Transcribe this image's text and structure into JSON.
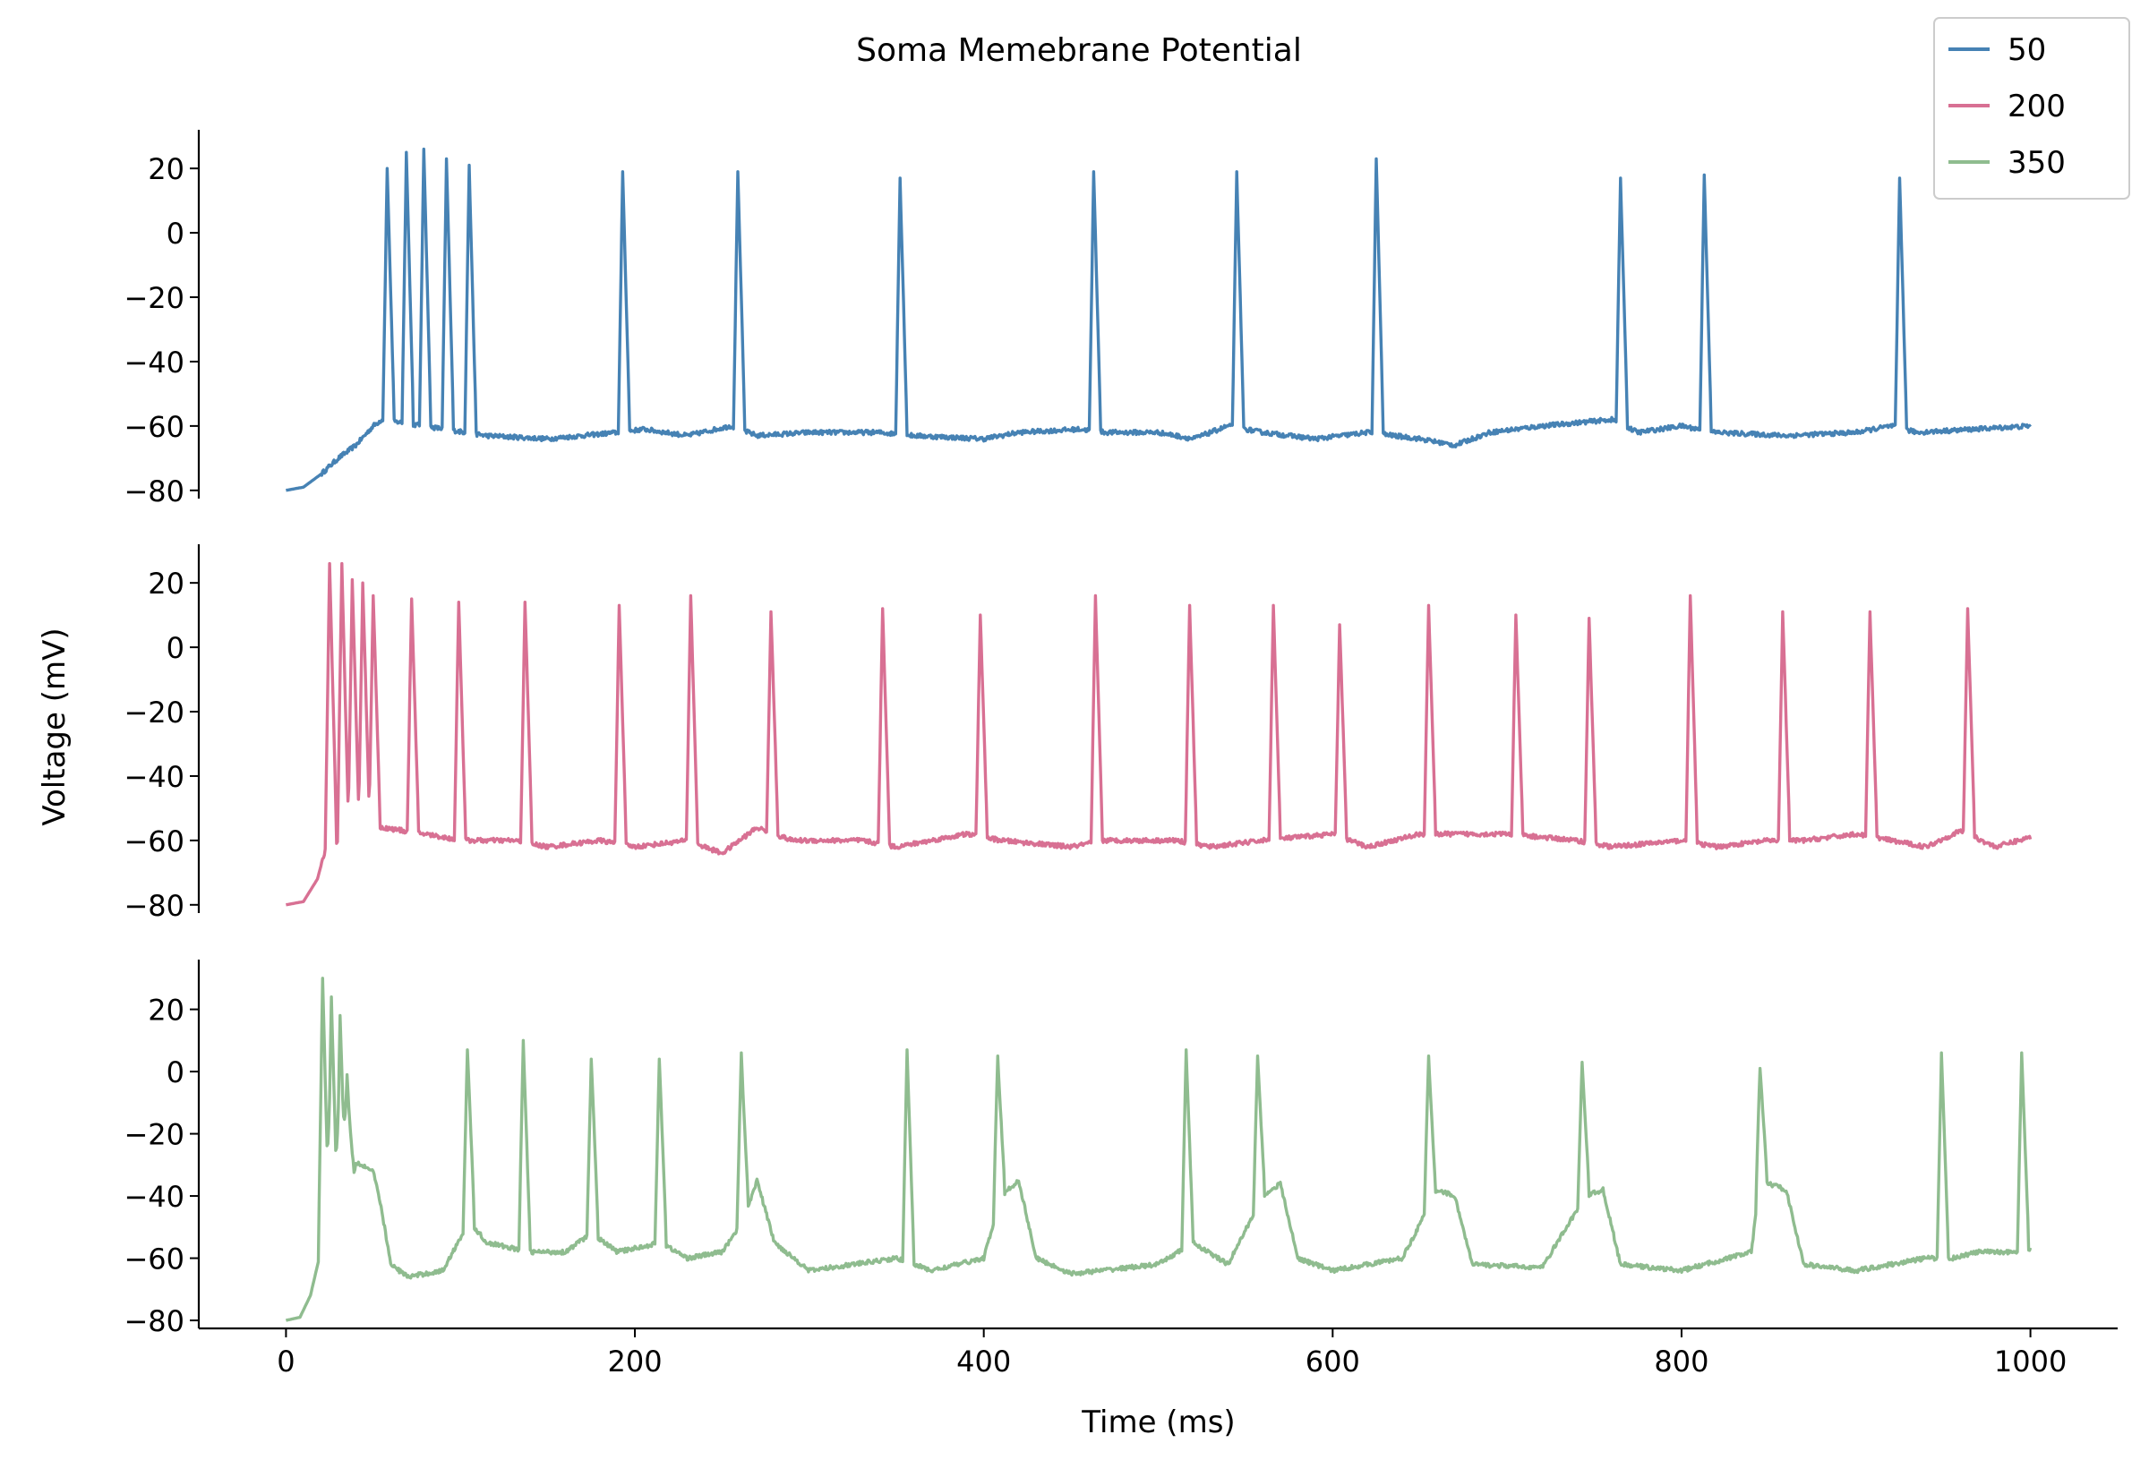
{
  "chart_data": {
    "type": "line",
    "title": "Soma Memebrane Potential",
    "xlabel": "Time (ms)",
    "ylabel": "Voltage (mV)",
    "xlim": [
      -50,
      1050
    ],
    "x_ticks": [
      0,
      200,
      400,
      600,
      800,
      1000
    ],
    "x_tick_labels": [
      "0",
      "200",
      "400",
      "600",
      "800",
      "1000"
    ],
    "y_ticks": [
      -80,
      -60,
      -40,
      -20,
      0,
      20
    ],
    "y_tick_labels": [
      "−80",
      "−60",
      "−40",
      "−20",
      "0",
      "20"
    ],
    "grid": false,
    "legend": {
      "position": "top-right",
      "entries": [
        "50",
        "200",
        "350"
      ]
    },
    "panels": [
      {
        "series": "50",
        "color": "#4682b4",
        "ylim": [
          -82,
          32
        ],
        "resting": -80,
        "spike_times": [
          58,
          69,
          79,
          92,
          105,
          193,
          259,
          352,
          463,
          545,
          625,
          765,
          813,
          925
        ],
        "spike_peaks": [
          20,
          25,
          26,
          23,
          21,
          19,
          19,
          17,
          19,
          19,
          23,
          17,
          18,
          17
        ],
        "baseline": [
          [
            0,
            -80
          ],
          [
            10,
            -79
          ],
          [
            20,
            -75
          ],
          [
            30,
            -70
          ],
          [
            40,
            -66
          ],
          [
            50,
            -60
          ],
          [
            55,
            -58
          ],
          [
            115,
            -63
          ],
          [
            150,
            -64
          ],
          [
            190,
            -62
          ],
          [
            205,
            -61
          ],
          [
            230,
            -63
          ],
          [
            255,
            -60
          ],
          [
            270,
            -63
          ],
          [
            300,
            -62
          ],
          [
            340,
            -62
          ],
          [
            360,
            -63
          ],
          [
            400,
            -64
          ],
          [
            420,
            -62
          ],
          [
            455,
            -61
          ],
          [
            470,
            -62
          ],
          [
            500,
            -62
          ],
          [
            520,
            -64
          ],
          [
            540,
            -60
          ],
          [
            560,
            -62
          ],
          [
            590,
            -64
          ],
          [
            620,
            -62
          ],
          [
            650,
            -64
          ],
          [
            670,
            -66
          ],
          [
            690,
            -62
          ],
          [
            720,
            -60
          ],
          [
            760,
            -58
          ],
          [
            775,
            -62
          ],
          [
            800,
            -60
          ],
          [
            820,
            -62
          ],
          [
            860,
            -63
          ],
          [
            900,
            -62
          ],
          [
            920,
            -60
          ],
          [
            935,
            -62
          ],
          [
            1000,
            -60
          ]
        ]
      },
      {
        "series": "200",
        "color": "#d87093",
        "ylim": [
          -82,
          32
        ],
        "resting": -80,
        "spike_times": [
          25,
          32,
          38,
          44,
          50,
          72,
          99,
          137,
          191,
          232,
          278,
          342,
          398,
          464,
          518,
          566,
          604,
          655,
          705,
          747,
          805,
          858,
          908,
          964
        ],
        "spike_peaks": [
          26,
          26,
          21,
          20,
          16,
          15,
          14,
          14,
          13,
          16,
          11,
          12,
          10,
          16,
          13,
          13,
          7,
          13,
          10,
          9,
          16,
          11,
          11,
          12
        ],
        "baseline": [
          [
            0,
            -80
          ],
          [
            10,
            -79
          ],
          [
            18,
            -72
          ],
          [
            23,
            -62
          ],
          [
            55,
            -56
          ],
          [
            80,
            -58
          ],
          [
            100,
            -60
          ],
          [
            130,
            -60
          ],
          [
            150,
            -62
          ],
          [
            180,
            -60
          ],
          [
            200,
            -62
          ],
          [
            230,
            -60
          ],
          [
            250,
            -64
          ],
          [
            270,
            -56
          ],
          [
            290,
            -60
          ],
          [
            330,
            -60
          ],
          [
            350,
            -62
          ],
          [
            390,
            -58
          ],
          [
            410,
            -60
          ],
          [
            450,
            -62
          ],
          [
            470,
            -60
          ],
          [
            510,
            -60
          ],
          [
            530,
            -62
          ],
          [
            560,
            -60
          ],
          [
            600,
            -58
          ],
          [
            620,
            -62
          ],
          [
            650,
            -58
          ],
          [
            700,
            -58
          ],
          [
            740,
            -60
          ],
          [
            760,
            -62
          ],
          [
            800,
            -60
          ],
          [
            820,
            -62
          ],
          [
            850,
            -60
          ],
          [
            870,
            -60
          ],
          [
            900,
            -58
          ],
          [
            940,
            -62
          ],
          [
            960,
            -57
          ],
          [
            980,
            -62
          ],
          [
            1000,
            -59
          ]
        ]
      },
      {
        "series": "350",
        "color": "#8fbc8f",
        "ylim": [
          -82,
          36
        ],
        "resting": -80,
        "spike_times": [
          21,
          26,
          31,
          35,
          104,
          136,
          175,
          214,
          261,
          356,
          408,
          516,
          557,
          655,
          743,
          845,
          949,
          995
        ],
        "spike_peaks": [
          30,
          24,
          18,
          -1,
          7,
          10,
          4,
          4,
          6,
          7,
          5,
          7,
          5,
          5,
          3,
          1,
          6,
          6
        ],
        "baseline": [
          [
            0,
            -80
          ],
          [
            8,
            -79
          ],
          [
            14,
            -72
          ],
          [
            19,
            -60
          ],
          [
            33,
            -55
          ],
          [
            40,
            -29
          ],
          [
            50,
            -32
          ],
          [
            55,
            -45
          ],
          [
            60,
            -62
          ],
          [
            70,
            -66
          ],
          [
            90,
            -64
          ],
          [
            105,
            -48
          ],
          [
            115,
            -55
          ],
          [
            140,
            -58
          ],
          [
            160,
            -58
          ],
          [
            175,
            -52
          ],
          [
            190,
            -58
          ],
          [
            215,
            -55
          ],
          [
            230,
            -60
          ],
          [
            250,
            -58
          ],
          [
            262,
            -48
          ],
          [
            270,
            -35
          ],
          [
            280,
            -55
          ],
          [
            300,
            -64
          ],
          [
            350,
            -60
          ],
          [
            370,
            -64
          ],
          [
            400,
            -60
          ],
          [
            410,
            -40
          ],
          [
            420,
            -35
          ],
          [
            430,
            -60
          ],
          [
            450,
            -65
          ],
          [
            500,
            -62
          ],
          [
            520,
            -55
          ],
          [
            540,
            -62
          ],
          [
            560,
            -40
          ],
          [
            570,
            -36
          ],
          [
            580,
            -60
          ],
          [
            600,
            -64
          ],
          [
            640,
            -60
          ],
          [
            660,
            -38
          ],
          [
            670,
            -40
          ],
          [
            680,
            -62
          ],
          [
            720,
            -63
          ],
          [
            745,
            -40
          ],
          [
            755,
            -38
          ],
          [
            765,
            -62
          ],
          [
            800,
            -64
          ],
          [
            840,
            -58
          ],
          [
            845,
            -35
          ],
          [
            860,
            -38
          ],
          [
            870,
            -62
          ],
          [
            900,
            -64
          ],
          [
            940,
            -60
          ],
          [
            955,
            -60
          ],
          [
            970,
            -58
          ],
          [
            990,
            -58
          ],
          [
            1000,
            -57
          ]
        ]
      }
    ]
  }
}
